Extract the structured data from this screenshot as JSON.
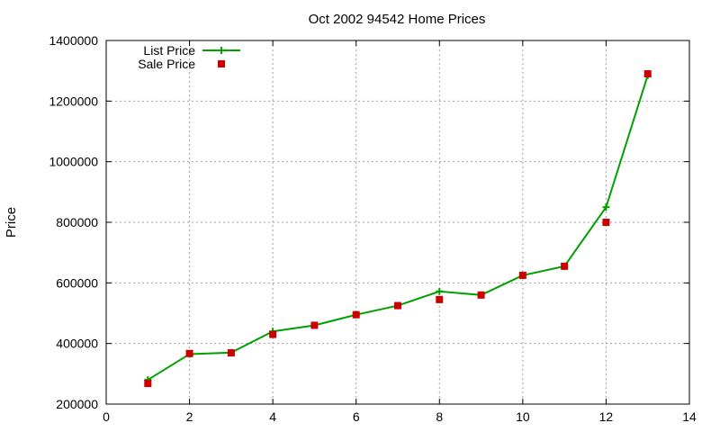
{
  "chart_data": {
    "type": "line",
    "title": "Oct 2002 94542 Home Prices",
    "xlabel": "",
    "ylabel": "Price",
    "xlim": [
      0,
      14
    ],
    "ylim": [
      200000,
      1400000
    ],
    "x_ticks": [
      0,
      2,
      4,
      6,
      8,
      10,
      12,
      14
    ],
    "y_ticks": [
      200000,
      400000,
      600000,
      800000,
      1000000,
      1200000,
      1400000
    ],
    "grid": true,
    "legend_position": "top-left",
    "series": [
      {
        "name": "List Price",
        "style": "line-plus",
        "color": "#00a000",
        "x": [
          1,
          2,
          3,
          4,
          5,
          6,
          7,
          8,
          9,
          10,
          11,
          12,
          13
        ],
        "y": [
          280000,
          365000,
          370000,
          440000,
          460000,
          495000,
          525000,
          572000,
          560000,
          625000,
          655000,
          850000,
          1285000
        ]
      },
      {
        "name": "Sale Price",
        "style": "square-points",
        "color": "#cc0000",
        "x": [
          1,
          2,
          3,
          4,
          5,
          6,
          7,
          8,
          9,
          10,
          11,
          12,
          13
        ],
        "y": [
          268000,
          367000,
          369000,
          430000,
          460000,
          495000,
          525000,
          545000,
          560000,
          625000,
          655000,
          800000,
          1290000
        ]
      }
    ]
  }
}
